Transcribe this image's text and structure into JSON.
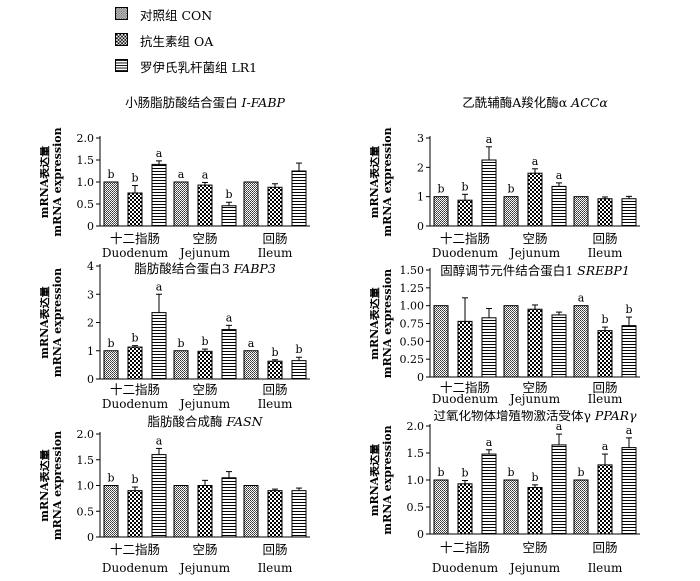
{
  "legend": [
    {
      "label": "对照组  CON",
      "pattern": "hatch"
    },
    {
      "label": "抗生素组  OA",
      "pattern": "checker"
    },
    {
      "label": "罗伊氏乳杆菌组  LR1",
      "pattern": "hstripe"
    }
  ],
  "chart_data": [
    {
      "type": "bar",
      "title_cn": "小肠脂肪酸结合蛋白",
      "title_gene": "I-FABP",
      "ylabel_cn": "mRNA表达量",
      "ylabel_en": "mRNA expression",
      "ylim": [
        0,
        2.0
      ],
      "yticks": [
        "0",
        "0.5",
        "1.0",
        "1.5",
        "2.0"
      ],
      "categories": [
        {
          "cn": "十二指肠",
          "en": "Duodenum"
        },
        {
          "cn": "空肠",
          "en": "Jejunum"
        },
        {
          "cn": "回肠",
          "en": "Ileum"
        }
      ],
      "series": [
        {
          "name": "CON",
          "values": [
            1.0,
            1.0,
            1.0
          ],
          "errors": [
            0.0,
            0.0,
            0.0
          ],
          "letters": [
            "b",
            "a",
            ""
          ]
        },
        {
          "name": "OA",
          "values": [
            0.75,
            0.93,
            0.88
          ],
          "errors": [
            0.17,
            0.06,
            0.08
          ],
          "letters": [
            "b",
            "a",
            ""
          ]
        },
        {
          "name": "LR1",
          "values": [
            1.4,
            0.46,
            1.25
          ],
          "errors": [
            0.08,
            0.08,
            0.18
          ],
          "letters": [
            "a",
            "b",
            ""
          ]
        }
      ]
    },
    {
      "type": "bar",
      "title_cn": "乙酰辅酶A羧化酶α",
      "title_gene": "ACCα",
      "ylabel_cn": "mRNA表达量",
      "ylabel_en": "mRNA expression",
      "ylim": [
        0,
        3
      ],
      "yticks": [
        "0",
        "1",
        "2",
        "3"
      ],
      "categories": [
        {
          "cn": "十二指肠",
          "en": "Duodenum"
        },
        {
          "cn": "空肠",
          "en": "Jejunum"
        },
        {
          "cn": "回肠",
          "en": "Ileum"
        }
      ],
      "series": [
        {
          "name": "CON",
          "values": [
            1.0,
            1.0,
            1.0
          ],
          "errors": [
            0.0,
            0.0,
            0.0
          ],
          "letters": [
            "b",
            "b",
            ""
          ]
        },
        {
          "name": "OA",
          "values": [
            0.88,
            1.8,
            0.93
          ],
          "errors": [
            0.2,
            0.15,
            0.06
          ],
          "letters": [
            "b",
            "a",
            ""
          ]
        },
        {
          "name": "LR1",
          "values": [
            2.25,
            1.35,
            0.93
          ],
          "errors": [
            0.45,
            0.12,
            0.08
          ],
          "letters": [
            "a",
            "a",
            ""
          ]
        }
      ]
    },
    {
      "type": "bar",
      "title_cn": "脂肪酸结合蛋白3",
      "title_gene": "FABP3",
      "ylabel_cn": "mRNA表达量",
      "ylabel_en": "mRNA expression",
      "ylim": [
        0,
        4
      ],
      "yticks": [
        "0",
        "1",
        "2",
        "3",
        "4"
      ],
      "categories": [
        {
          "cn": "十二指肠",
          "en": "Duodenum"
        },
        {
          "cn": "空肠",
          "en": "Jejunum"
        },
        {
          "cn": "回肠",
          "en": "Ileum"
        }
      ],
      "series": [
        {
          "name": "CON",
          "values": [
            1.0,
            1.0,
            1.0
          ],
          "errors": [
            0.0,
            0.0,
            0.0
          ],
          "letters": [
            "b",
            "b",
            "a"
          ]
        },
        {
          "name": "OA",
          "values": [
            1.13,
            0.98,
            0.63
          ],
          "errors": [
            0.05,
            0.08,
            0.05
          ],
          "letters": [
            "b",
            "b",
            "b"
          ]
        },
        {
          "name": "LR1",
          "values": [
            2.35,
            1.75,
            0.65
          ],
          "errors": [
            0.65,
            0.15,
            0.12
          ],
          "letters": [
            "a",
            "a",
            "b"
          ]
        }
      ]
    },
    {
      "type": "bar",
      "title_cn": "固醇调节元件结合蛋白1",
      "title_gene": "SREBP1",
      "ylabel_cn": "mRNA表达量",
      "ylabel_en": "mRNA expression",
      "ylim": [
        0,
        1.5
      ],
      "yticks": [
        "0",
        "0.25",
        "0.50",
        "0.75",
        "1.00",
        "1.25",
        "1.50"
      ],
      "categories": [
        {
          "cn": "十二指肠",
          "en": "Duodenum"
        },
        {
          "cn": "空肠",
          "en": "Jejunum"
        },
        {
          "cn": "回肠",
          "en": "Ileum"
        }
      ],
      "series": [
        {
          "name": "CON",
          "values": [
            1.0,
            1.0,
            1.0
          ],
          "errors": [
            0.0,
            0.0,
            0.0
          ],
          "letters": [
            "",
            "",
            "a"
          ]
        },
        {
          "name": "OA",
          "values": [
            0.78,
            0.95,
            0.65
          ],
          "errors": [
            0.33,
            0.06,
            0.05
          ],
          "letters": [
            "",
            "",
            "b"
          ]
        },
        {
          "name": "LR1",
          "values": [
            0.83,
            0.87,
            0.72
          ],
          "errors": [
            0.13,
            0.04,
            0.12
          ],
          "letters": [
            "",
            "",
            "b"
          ]
        }
      ]
    },
    {
      "type": "bar",
      "title_cn": "脂肪酸合成酶",
      "title_gene": "FASN",
      "ylabel_cn": "mRNA表达量",
      "ylabel_en": "mRNA expression",
      "ylim": [
        0,
        2.0
      ],
      "yticks": [
        "0",
        "0.5",
        "1.0",
        "1.5",
        "2.0"
      ],
      "categories": [
        {
          "cn": "十二指肠",
          "en": "Duodenum"
        },
        {
          "cn": "空肠",
          "en": "Jejunum"
        },
        {
          "cn": "回肠",
          "en": "Ileum"
        }
      ],
      "series": [
        {
          "name": "CON",
          "values": [
            1.0,
            1.0,
            1.0
          ],
          "errors": [
            0.0,
            0.0,
            0.0
          ],
          "letters": [
            "b",
            "",
            ""
          ]
        },
        {
          "name": "OA",
          "values": [
            0.9,
            1.0,
            0.9
          ],
          "errors": [
            0.07,
            0.1,
            0.03
          ],
          "letters": [
            "b",
            "",
            ""
          ]
        },
        {
          "name": "LR1",
          "values": [
            1.6,
            1.15,
            0.9
          ],
          "errors": [
            0.12,
            0.12,
            0.05
          ],
          "letters": [
            "a",
            "",
            ""
          ]
        }
      ]
    },
    {
      "type": "bar",
      "title_cn": "过氧化物体增殖物激活受体γ",
      "title_gene": "PPARγ",
      "ylabel_cn": "mRNA表达量",
      "ylabel_en": "mRNA expression",
      "ylim": [
        0,
        2.0
      ],
      "yticks": [
        "0",
        "0.5",
        "1.0",
        "1.5",
        "2.0"
      ],
      "categories": [
        {
          "cn": "十二指肠",
          "en": "Duodenum"
        },
        {
          "cn": "空肠",
          "en": "Jejunum"
        },
        {
          "cn": "回肠",
          "en": "Ileum"
        }
      ],
      "series": [
        {
          "name": "CON",
          "values": [
            1.0,
            1.0,
            1.0
          ],
          "errors": [
            0.0,
            0.0,
            0.0
          ],
          "letters": [
            "b",
            "b",
            "b"
          ]
        },
        {
          "name": "OA",
          "values": [
            0.93,
            0.86,
            1.28
          ],
          "errors": [
            0.06,
            0.05,
            0.2
          ],
          "letters": [
            "b",
            "b",
            "a"
          ]
        },
        {
          "name": "LR1",
          "values": [
            1.48,
            1.65,
            1.6
          ],
          "errors": [
            0.08,
            0.2,
            0.18
          ],
          "letters": [
            "a",
            "a",
            "a"
          ]
        }
      ]
    }
  ]
}
